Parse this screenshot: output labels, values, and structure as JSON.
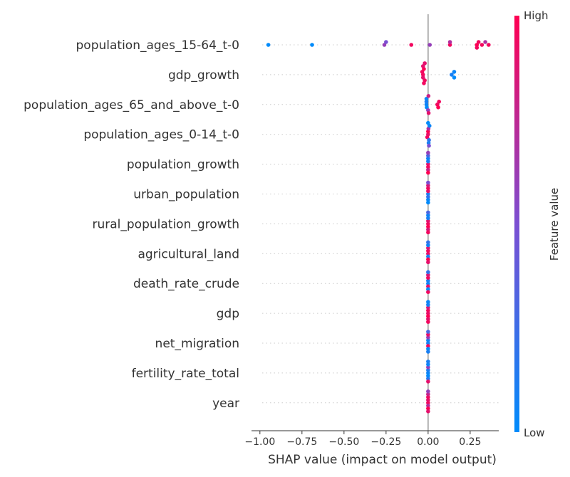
{
  "chart_data": {
    "type": "scatter",
    "subtype": "shap-beeswarm",
    "xlabel": "SHAP value (impact on model output)",
    "xlim": [
      -1.05,
      0.42
    ],
    "xticks": [
      -1.0,
      -0.75,
      -0.5,
      -0.25,
      0.0,
      0.25
    ],
    "xtick_labels": [
      "−1.00",
      "−0.75",
      "−0.50",
      "−0.25",
      "0.00",
      "0.25"
    ],
    "colorbar": {
      "label": "Feature value",
      "high_label": "High",
      "low_label": "Low",
      "low_color": "#008bfb",
      "high_color": "#ff0052"
    },
    "grid": false,
    "features": [
      {
        "name": "population_ages_15-64_t-0",
        "points": [
          {
            "x": -0.95,
            "v": 0.0
          },
          {
            "x": -0.69,
            "v": 0.0
          },
          {
            "x": -0.26,
            "v": 0.6
          },
          {
            "x": -0.25,
            "v": 0.5
          },
          {
            "x": -0.1,
            "v": 0.95
          },
          {
            "x": 0.01,
            "v": 0.6
          },
          {
            "x": 0.13,
            "v": 0.95
          },
          {
            "x": 0.13,
            "v": 0.7
          },
          {
            "x": 0.29,
            "v": 1.0
          },
          {
            "x": 0.3,
            "v": 0.95
          },
          {
            "x": 0.32,
            "v": 0.95
          },
          {
            "x": 0.34,
            "v": 0.7
          },
          {
            "x": 0.36,
            "v": 0.95
          },
          {
            "x": 0.29,
            "v": 0.95
          }
        ]
      },
      {
        "name": "gdp_growth",
        "points": [
          {
            "x": -0.03,
            "v": 0.95
          },
          {
            "x": -0.035,
            "v": 0.95
          },
          {
            "x": -0.03,
            "v": 0.9
          },
          {
            "x": -0.025,
            "v": 1.0
          },
          {
            "x": -0.02,
            "v": 0.95
          },
          {
            "x": -0.03,
            "v": 0.9
          },
          {
            "x": -0.025,
            "v": 0.95
          },
          {
            "x": -0.02,
            "v": 0.9
          },
          {
            "x": 0.14,
            "v": 0.1
          },
          {
            "x": 0.155,
            "v": 0.05
          },
          {
            "x": 0.155,
            "v": 0.0
          }
        ]
      },
      {
        "name": "population_ages_65_and_above_t-0",
        "points": [
          {
            "x": -0.01,
            "v": 0.05
          },
          {
            "x": -0.01,
            "v": 0.1
          },
          {
            "x": -0.008,
            "v": 0.0
          },
          {
            "x": -0.01,
            "v": 0.05
          },
          {
            "x": 0.0,
            "v": 0.6
          },
          {
            "x": 0.002,
            "v": 0.8
          },
          {
            "x": 0.003,
            "v": 0.9
          },
          {
            "x": 0.055,
            "v": 0.95
          },
          {
            "x": 0.065,
            "v": 0.95
          },
          {
            "x": 0.06,
            "v": 1.0
          }
        ]
      },
      {
        "name": "population_ages_0-14_t-0",
        "points": [
          {
            "x": 0.0,
            "v": 0.9
          },
          {
            "x": 0.0,
            "v": 1.0
          },
          {
            "x": -0.005,
            "v": 0.95
          },
          {
            "x": 0.002,
            "v": 0.7
          },
          {
            "x": 0.005,
            "v": 0.2
          },
          {
            "x": 0.008,
            "v": 0.05
          },
          {
            "x": 0.003,
            "v": 0.1
          },
          {
            "x": 0.0,
            "v": 0.0
          },
          {
            "x": 0.005,
            "v": 0.5
          }
        ]
      },
      {
        "name": "population_growth",
        "points": [
          {
            "x": 0.0,
            "v": 0.9
          },
          {
            "x": 0.0,
            "v": 0.1
          },
          {
            "x": 0.0,
            "v": 0.95
          },
          {
            "x": 0.0,
            "v": 0.05
          },
          {
            "x": 0.0,
            "v": 0.8
          },
          {
            "x": 0.0,
            "v": 0.3
          },
          {
            "x": 0.0,
            "v": 1.0
          },
          {
            "x": 0.0,
            "v": 0.6
          }
        ]
      },
      {
        "name": "urban_population",
        "points": [
          {
            "x": 0.0,
            "v": 0.1
          },
          {
            "x": 0.0,
            "v": 0.9
          },
          {
            "x": 0.0,
            "v": 0.2
          },
          {
            "x": 0.0,
            "v": 0.95
          },
          {
            "x": 0.0,
            "v": 0.05
          },
          {
            "x": 0.0,
            "v": 0.85
          },
          {
            "x": 0.0,
            "v": 0.0
          },
          {
            "x": 0.0,
            "v": 0.5
          }
        ]
      },
      {
        "name": "rural_population_growth",
        "points": [
          {
            "x": 0.0,
            "v": 0.95
          },
          {
            "x": 0.0,
            "v": 0.9
          },
          {
            "x": 0.0,
            "v": 1.0
          },
          {
            "x": 0.0,
            "v": 0.1
          },
          {
            "x": 0.0,
            "v": 0.85
          },
          {
            "x": 0.0,
            "v": 0.05
          },
          {
            "x": 0.0,
            "v": 0.95
          },
          {
            "x": 0.0,
            "v": 0.3
          }
        ]
      },
      {
        "name": "agricultural_land",
        "points": [
          {
            "x": 0.0,
            "v": 0.9
          },
          {
            "x": 0.0,
            "v": 0.95
          },
          {
            "x": 0.0,
            "v": 0.1
          },
          {
            "x": 0.0,
            "v": 0.85
          },
          {
            "x": 0.0,
            "v": 1.0
          },
          {
            "x": 0.0,
            "v": 0.05
          },
          {
            "x": 0.0,
            "v": 0.9
          },
          {
            "x": 0.0,
            "v": 0.2
          }
        ]
      },
      {
        "name": "death_rate_crude",
        "points": [
          {
            "x": 0.0,
            "v": 0.05
          },
          {
            "x": 0.0,
            "v": 0.1
          },
          {
            "x": 0.0,
            "v": 0.9
          },
          {
            "x": 0.0,
            "v": 0.95
          },
          {
            "x": 0.0,
            "v": 0.0
          },
          {
            "x": 0.0,
            "v": 0.85
          },
          {
            "x": 0.0,
            "v": 0.95
          },
          {
            "x": 0.0,
            "v": 0.2
          }
        ]
      },
      {
        "name": "gdp",
        "points": [
          {
            "x": 0.0,
            "v": 0.9
          },
          {
            "x": 0.0,
            "v": 0.95
          },
          {
            "x": 0.0,
            "v": 1.0
          },
          {
            "x": 0.0,
            "v": 0.85
          },
          {
            "x": 0.0,
            "v": 0.9
          },
          {
            "x": 0.0,
            "v": 0.1
          },
          {
            "x": 0.0,
            "v": 0.95
          },
          {
            "x": 0.0,
            "v": 0.05
          }
        ]
      },
      {
        "name": "net_migration",
        "points": [
          {
            "x": 0.0,
            "v": 0.1
          },
          {
            "x": 0.0,
            "v": 0.05
          },
          {
            "x": 0.0,
            "v": 0.95
          },
          {
            "x": 0.0,
            "v": 0.6
          },
          {
            "x": 0.0,
            "v": 0.0
          },
          {
            "x": 0.0,
            "v": 0.9
          },
          {
            "x": 0.0,
            "v": 0.1
          },
          {
            "x": 0.0,
            "v": 0.3
          }
        ]
      },
      {
        "name": "fertility_rate_total",
        "points": [
          {
            "x": 0.0,
            "v": 0.05
          },
          {
            "x": 0.0,
            "v": 0.1
          },
          {
            "x": 0.0,
            "v": 0.0
          },
          {
            "x": 0.0,
            "v": 0.6
          },
          {
            "x": 0.0,
            "v": 0.15
          },
          {
            "x": 0.0,
            "v": 0.05
          },
          {
            "x": 0.0,
            "v": 0.9
          },
          {
            "x": 0.0,
            "v": 0.1
          }
        ]
      },
      {
        "name": "year",
        "points": [
          {
            "x": 0.0,
            "v": 0.95
          },
          {
            "x": 0.0,
            "v": 0.9
          },
          {
            "x": 0.0,
            "v": 0.7
          },
          {
            "x": 0.0,
            "v": 0.95
          },
          {
            "x": 0.0,
            "v": 1.0
          },
          {
            "x": 0.0,
            "v": 0.8
          },
          {
            "x": 0.0,
            "v": 0.9
          },
          {
            "x": 0.0,
            "v": 0.6
          }
        ]
      }
    ]
  }
}
